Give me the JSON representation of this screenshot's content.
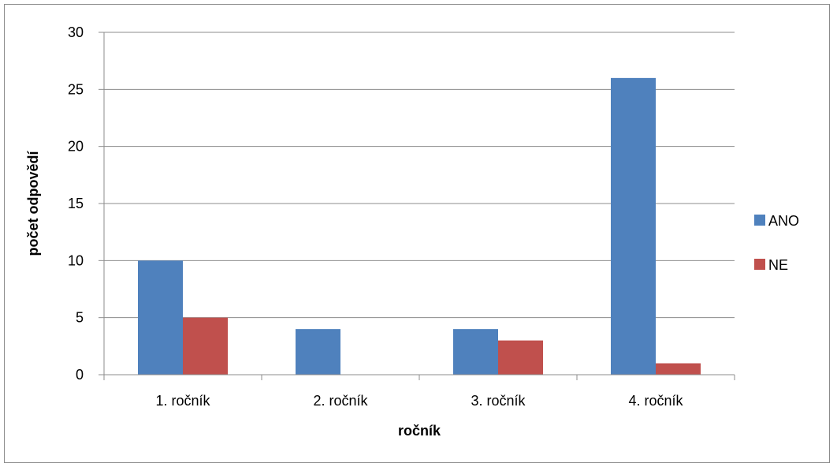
{
  "chart_data": {
    "type": "bar",
    "title": "",
    "xlabel": "ročník",
    "ylabel": "počet odpovědí",
    "categories": [
      "1. ročník",
      "2. ročník",
      "3. ročník",
      "4. ročník"
    ],
    "series": [
      {
        "name": "ANO",
        "color": "#4f81bd",
        "values": [
          10,
          4,
          4,
          26
        ]
      },
      {
        "name": "NE",
        "color": "#c0504d",
        "values": [
          5,
          0,
          3,
          1
        ]
      }
    ],
    "ylim": [
      0,
      30
    ],
    "yticks": [
      0,
      5,
      10,
      15,
      20,
      25,
      30
    ],
    "grid": true,
    "legend": "right"
  }
}
